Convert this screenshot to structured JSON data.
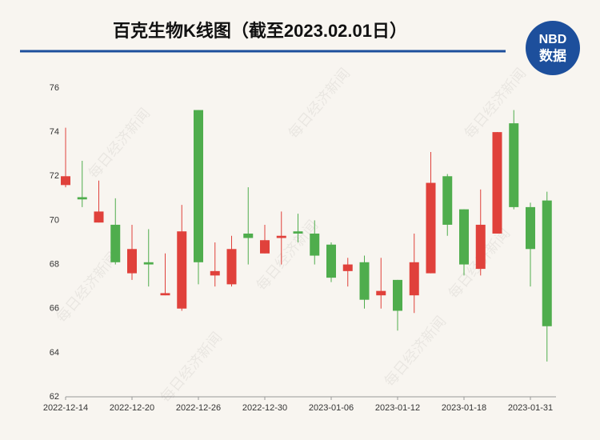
{
  "chart_data": {
    "type": "candlestick",
    "title": "百克生物K线图（截至2023.02.01日）",
    "logo": {
      "top": "NBD",
      "bottom": "数据"
    },
    "watermark": "每日经济新闻",
    "categories": [
      "2022-12-14",
      null,
      null,
      null,
      "2022-12-20",
      null,
      null,
      null,
      "2022-12-26",
      null,
      null,
      null,
      "2022-12-30",
      null,
      null,
      null,
      "2023-01-06",
      null,
      null,
      null,
      "2023-01-12",
      null,
      null,
      null,
      "2023-01-18",
      null,
      null,
      null,
      "2023-01-31",
      null
    ],
    "open": [
      71.6,
      71.05,
      69.9,
      69.8,
      67.6,
      68.1,
      66.6,
      66.0,
      75.0,
      67.5,
      67.1,
      69.4,
      68.5,
      69.2,
      69.5,
      69.4,
      68.9,
      67.7,
      68.1,
      66.6,
      67.3,
      66.6,
      67.6,
      72.0,
      70.5,
      67.8,
      69.4,
      74.4,
      70.6,
      70.9
    ],
    "high": [
      74.2,
      72.7,
      71.8,
      71.0,
      69.8,
      69.6,
      68.5,
      70.7,
      75.0,
      69.0,
      69.3,
      71.5,
      69.8,
      70.4,
      70.3,
      70.0,
      69.0,
      68.3,
      68.4,
      68.3,
      67.3,
      69.4,
      73.1,
      72.1,
      70.5,
      71.4,
      74.0,
      75.0,
      70.8,
      71.3
    ],
    "low": [
      71.5,
      70.6,
      69.9,
      68.0,
      67.3,
      67.0,
      66.6,
      65.9,
      67.1,
      67.0,
      67.0,
      68.0,
      68.5,
      68.0,
      69.0,
      68.0,
      67.2,
      67.0,
      66.0,
      66.0,
      65.0,
      65.8,
      67.6,
      69.3,
      67.5,
      67.5,
      69.4,
      70.5,
      67.0,
      63.6
    ],
    "close": [
      72.0,
      70.95,
      70.4,
      68.1,
      68.7,
      68.0,
      66.7,
      69.5,
      68.1,
      67.7,
      68.7,
      69.2,
      69.1,
      69.3,
      69.4,
      68.4,
      67.4,
      68.0,
      66.4,
      66.8,
      65.9,
      68.1,
      71.7,
      69.8,
      68.0,
      69.8,
      74.0,
      70.6,
      68.7,
      65.2
    ],
    "up_color": "#e0413b",
    "down_color": "#4fad4d",
    "ylim": [
      62,
      76
    ],
    "yticks": [
      62,
      64,
      66,
      68,
      70,
      72,
      74,
      76
    ],
    "grid": false
  }
}
